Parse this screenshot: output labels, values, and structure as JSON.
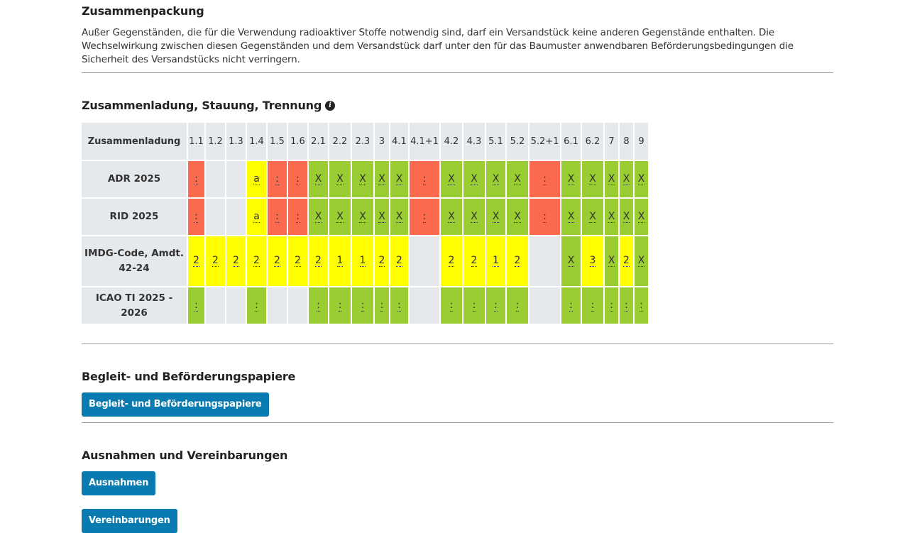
{
  "sections": {
    "packing": {
      "title": "Zusammenpackung",
      "text": "Außer Gegenständen, die für die Verwendung radioaktiver Stoffe notwendig sind, darf ein Versandstück keine anderen Gegenstände enthalten. Die Wechselwirkung zwischen diesen Gegenständen und dem Versandstück darf unter den für das Baumuster anwendbaren Beförderungsbedingungen die Sicherheit des Versandstücks nicht verringern."
    },
    "loading": {
      "title": "Zusammenladung, Stauung, Trennung",
      "info_icon": "i"
    },
    "documents": {
      "title": "Begleit- und Beförderungspapiere",
      "button": "Begleit- und Beförderungspapiere"
    },
    "exceptions": {
      "title": "Ausnahmen und Vereinbarungen",
      "button1": "Ausnahmen",
      "button2": "Vereinbarungen"
    }
  },
  "colors": {
    "red": "#fc6a4e",
    "yellow": "#ffff00",
    "green": "#9acd32",
    "grey": "#e6e9ec",
    "button": "#0a7bb0"
  },
  "table": {
    "header": [
      "Zusammenladung",
      "1.1",
      "1.2",
      "1.3",
      "1.4",
      "1.5",
      "1.6",
      "2.1",
      "2.2",
      "2.3",
      "3",
      "4.1",
      "4.1+1",
      "4.2",
      "4.3",
      "5.1",
      "5.2",
      "5.2+1",
      "6.1",
      "6.2",
      "7",
      "8",
      "9"
    ],
    "rows": [
      {
        "label": "ADR 2025",
        "cells": [
          {
            "c": "red",
            "t": ":"
          },
          {
            "c": "grey",
            "t": ""
          },
          {
            "c": "grey",
            "t": ""
          },
          {
            "c": "yellow",
            "t": "a"
          },
          {
            "c": "red",
            "t": ":"
          },
          {
            "c": "red",
            "t": ":"
          },
          {
            "c": "green",
            "t": "X"
          },
          {
            "c": "green",
            "t": "X"
          },
          {
            "c": "green",
            "t": "X"
          },
          {
            "c": "green",
            "t": "X"
          },
          {
            "c": "green",
            "t": "X"
          },
          {
            "c": "red",
            "t": ":"
          },
          {
            "c": "green",
            "t": "X"
          },
          {
            "c": "green",
            "t": "X"
          },
          {
            "c": "green",
            "t": "X"
          },
          {
            "c": "green",
            "t": "X"
          },
          {
            "c": "red",
            "t": ":"
          },
          {
            "c": "green",
            "t": "X"
          },
          {
            "c": "green",
            "t": "X"
          },
          {
            "c": "green",
            "t": "X"
          },
          {
            "c": "green",
            "t": "X"
          },
          {
            "c": "green",
            "t": "X"
          }
        ]
      },
      {
        "label": "RID 2025",
        "cells": [
          {
            "c": "red",
            "t": ":"
          },
          {
            "c": "grey",
            "t": ""
          },
          {
            "c": "grey",
            "t": ""
          },
          {
            "c": "yellow",
            "t": "a"
          },
          {
            "c": "red",
            "t": ":"
          },
          {
            "c": "red",
            "t": ":"
          },
          {
            "c": "green",
            "t": "X"
          },
          {
            "c": "green",
            "t": "X"
          },
          {
            "c": "green",
            "t": "X"
          },
          {
            "c": "green",
            "t": "X"
          },
          {
            "c": "green",
            "t": "X"
          },
          {
            "c": "red",
            "t": ":"
          },
          {
            "c": "green",
            "t": "X"
          },
          {
            "c": "green",
            "t": "X"
          },
          {
            "c": "green",
            "t": "X"
          },
          {
            "c": "green",
            "t": "X"
          },
          {
            "c": "red",
            "t": ":"
          },
          {
            "c": "green",
            "t": "X"
          },
          {
            "c": "green",
            "t": "X"
          },
          {
            "c": "green",
            "t": "X"
          },
          {
            "c": "green",
            "t": "X"
          },
          {
            "c": "green",
            "t": "X"
          }
        ]
      },
      {
        "label": "IMDG-Code, Amdt. 42-24",
        "tall": true,
        "cells": [
          {
            "c": "yellow",
            "t": "2"
          },
          {
            "c": "yellow",
            "t": "2"
          },
          {
            "c": "yellow",
            "t": "2"
          },
          {
            "c": "yellow",
            "t": "2"
          },
          {
            "c": "yellow",
            "t": "2"
          },
          {
            "c": "yellow",
            "t": "2"
          },
          {
            "c": "yellow",
            "t": "2"
          },
          {
            "c": "yellow",
            "t": "1"
          },
          {
            "c": "yellow",
            "t": "1"
          },
          {
            "c": "yellow",
            "t": "2"
          },
          {
            "c": "yellow",
            "t": "2"
          },
          {
            "c": "grey",
            "t": ""
          },
          {
            "c": "yellow",
            "t": "2"
          },
          {
            "c": "yellow",
            "t": "2"
          },
          {
            "c": "yellow",
            "t": "1"
          },
          {
            "c": "yellow",
            "t": "2"
          },
          {
            "c": "grey",
            "t": ""
          },
          {
            "c": "green",
            "t": "X"
          },
          {
            "c": "yellow",
            "t": "3"
          },
          {
            "c": "green",
            "t": "X"
          },
          {
            "c": "yellow",
            "t": "2"
          },
          {
            "c": "green",
            "t": "X"
          }
        ]
      },
      {
        "label": "ICAO TI 2025 - 2026",
        "cells": [
          {
            "c": "green",
            "t": ":"
          },
          {
            "c": "grey",
            "t": ""
          },
          {
            "c": "grey",
            "t": ""
          },
          {
            "c": "green",
            "t": ":"
          },
          {
            "c": "grey",
            "t": ""
          },
          {
            "c": "grey",
            "t": ""
          },
          {
            "c": "green",
            "t": ":"
          },
          {
            "c": "green",
            "t": ":"
          },
          {
            "c": "green",
            "t": ":"
          },
          {
            "c": "green",
            "t": ":"
          },
          {
            "c": "green",
            "t": ":"
          },
          {
            "c": "grey",
            "t": ""
          },
          {
            "c": "green",
            "t": ":"
          },
          {
            "c": "green",
            "t": ":"
          },
          {
            "c": "green",
            "t": ":"
          },
          {
            "c": "green",
            "t": ":"
          },
          {
            "c": "grey",
            "t": ""
          },
          {
            "c": "green",
            "t": ":"
          },
          {
            "c": "green",
            "t": ":"
          },
          {
            "c": "green",
            "t": ":"
          },
          {
            "c": "green",
            "t": ":"
          },
          {
            "c": "green",
            "t": ":"
          }
        ]
      }
    ]
  }
}
